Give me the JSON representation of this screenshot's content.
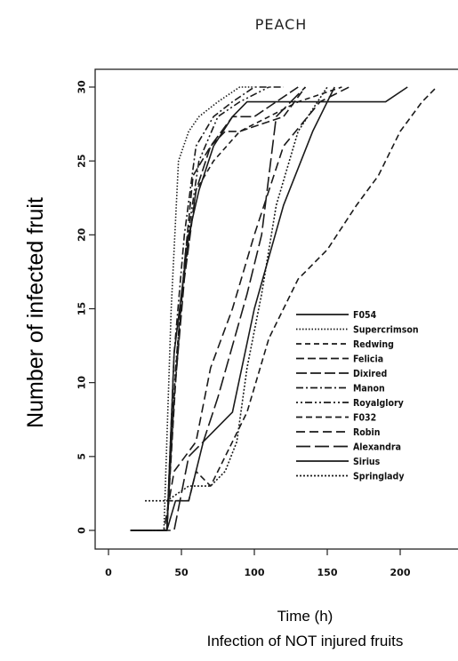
{
  "chart_data": {
    "type": "line",
    "title": "PEACH",
    "xlabel": "Time (h)",
    "subtitle": "Infection of NOT injured fruits",
    "ylabel": "Number of infected fruit",
    "xlim": [
      0,
      235
    ],
    "ylim": [
      -2,
      31.5
    ],
    "xticks": [
      0,
      50,
      100,
      150,
      200
    ],
    "yticks": [
      0,
      5,
      10,
      15,
      20,
      25,
      30
    ],
    "grid": false,
    "legend_position": "bottom-right",
    "series": [
      {
        "name": "F054",
        "dash": "",
        "x": [
          15,
          40,
          45,
          55,
          62,
          72,
          85,
          95,
          190,
          205
        ],
        "y": [
          0,
          0,
          12,
          20,
          23,
          26,
          28,
          29,
          29,
          30
        ]
      },
      {
        "name": "Supercrimson",
        "dash": "1.5 2",
        "x": [
          20,
          38,
          43,
          48,
          55,
          62,
          75,
          90,
          100
        ],
        "y": [
          0,
          0,
          15,
          25,
          27,
          28,
          29,
          30,
          30
        ]
      },
      {
        "name": "Redwing",
        "dash": "6 4",
        "x": [
          15,
          40,
          44,
          50,
          60,
          72,
          90,
          110,
          130,
          160
        ],
        "y": [
          0,
          0,
          8,
          16,
          23,
          25,
          27,
          28,
          29,
          30
        ]
      },
      {
        "name": "Felicia",
        "dash": "9 4",
        "x": [
          15,
          40,
          46,
          52,
          58,
          70,
          80,
          90,
          120,
          135
        ],
        "y": [
          0,
          0,
          10,
          18,
          24,
          26,
          27,
          27,
          28,
          30
        ]
      },
      {
        "name": "Dixired",
        "dash": "12 4",
        "x": [
          15,
          40,
          45,
          52,
          60,
          70,
          85,
          100,
          115,
          130
        ],
        "y": [
          0,
          0,
          9,
          17,
          23,
          26,
          28,
          28,
          29,
          30
        ]
      },
      {
        "name": "Manon",
        "dash": "8 3 2 3",
        "x": [
          15,
          40,
          45,
          52,
          60,
          72,
          85,
          100,
          120
        ],
        "y": [
          0,
          0,
          12,
          20,
          26,
          28,
          29,
          30,
          30
        ]
      },
      {
        "name": "Royalglory",
        "dash": "2 3 2 3 8 3",
        "x": [
          15,
          40,
          46,
          53,
          62,
          75,
          90,
          110
        ],
        "y": [
          0,
          0,
          11,
          19,
          25,
          28,
          29,
          30
        ]
      },
      {
        "name": "F032",
        "dash": "7 4",
        "x": [
          40,
          55,
          60,
          70,
          80,
          95,
          110,
          130,
          150,
          170,
          185,
          200,
          215,
          225
        ],
        "y": [
          2,
          2,
          4,
          3,
          5,
          8,
          13,
          17,
          19,
          22,
          24,
          27,
          29,
          30
        ]
      },
      {
        "name": "Robin",
        "dash": "10 5",
        "x": [
          15,
          38,
          45,
          60,
          70,
          85,
          100,
          120,
          145,
          165
        ],
        "y": [
          0,
          0,
          4,
          6,
          11,
          15,
          20,
          26,
          29,
          30
        ]
      },
      {
        "name": "Alexandra",
        "dash": "16 5",
        "x": [
          20,
          45,
          55,
          65,
          75,
          95,
          105,
          115,
          125,
          135
        ],
        "y": [
          0,
          0,
          5,
          6,
          9,
          16,
          20,
          28,
          29,
          30
        ]
      },
      {
        "name": "Sirius",
        "dash": "",
        "x": [
          20,
          40,
          46,
          55,
          65,
          85,
          100,
          120,
          140,
          155
        ],
        "y": [
          0,
          0,
          2,
          2,
          6,
          8,
          15,
          22,
          27,
          30
        ]
      },
      {
        "name": "Springlady",
        "dash": "2 2",
        "x": [
          25,
          40,
          55,
          70,
          80,
          88,
          95,
          105,
          115,
          130,
          150
        ],
        "y": [
          2,
          2,
          3,
          3,
          4,
          6,
          11,
          16,
          22,
          27,
          30
        ]
      }
    ]
  }
}
